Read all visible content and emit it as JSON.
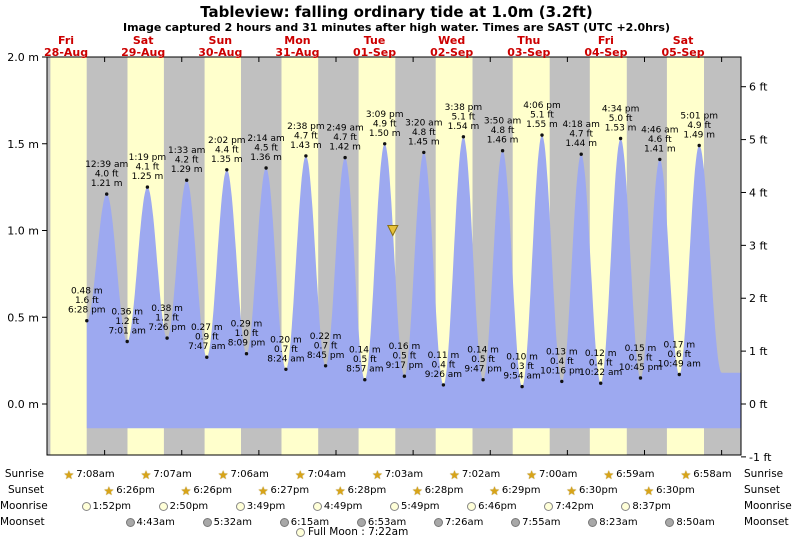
{
  "title": "Tableview: falling ordinary tide at 1.0m (3.2ft)",
  "subtitle": "Image captured 2 hours and 31 minutes after high water. Times are SAST (UTC +2.0hrs)",
  "chart_data": {
    "type": "area",
    "series_name": "tide height",
    "days": [
      {
        "weekday": "Fri",
        "date": "28-Aug"
      },
      {
        "weekday": "Sat",
        "date": "29-Aug"
      },
      {
        "weekday": "Sun",
        "date": "30-Aug"
      },
      {
        "weekday": "Mon",
        "date": "31-Aug"
      },
      {
        "weekday": "Tue",
        "date": "01-Sep"
      },
      {
        "weekday": "Wed",
        "date": "02-Sep"
      },
      {
        "weekday": "Thu",
        "date": "03-Sep"
      },
      {
        "weekday": "Fri",
        "date": "04-Sep"
      },
      {
        "weekday": "Sat",
        "date": "05-Sep"
      }
    ],
    "y_axis_left_m": [
      0.0,
      0.5,
      1.0,
      1.5,
      2.0
    ],
    "y_axis_right_ft": [
      -1,
      0,
      1,
      2,
      3,
      4,
      5,
      6
    ],
    "ylim_m": [
      -0.294,
      2.0
    ],
    "tide_events": [
      {
        "day": 0,
        "type": "low",
        "time": "6:28 pm",
        "m": "0.48",
        "ft": "1.6"
      },
      {
        "day": 1,
        "type": "high",
        "time": "12:39 am",
        "m": "1.21",
        "ft": "4.0"
      },
      {
        "day": 1,
        "type": "low",
        "time": "7:01 am",
        "m": "0.36",
        "ft": "1.2"
      },
      {
        "day": 1,
        "type": "high",
        "time": "1:19 pm",
        "m": "1.25",
        "ft": "4.1"
      },
      {
        "day": 1,
        "type": "low",
        "time": "7:26 pm",
        "m": "0.38",
        "ft": "1.2"
      },
      {
        "day": 2,
        "type": "high",
        "time": "1:33 am",
        "m": "1.29",
        "ft": "4.2"
      },
      {
        "day": 2,
        "type": "low",
        "time": "7:47 am",
        "m": "0.27",
        "ft": "0.9"
      },
      {
        "day": 2,
        "type": "high",
        "time": "2:02 pm",
        "m": "1.35",
        "ft": "4.4"
      },
      {
        "day": 2,
        "type": "low",
        "time": "8:09 pm",
        "m": "0.29",
        "ft": "1.0"
      },
      {
        "day": 3,
        "type": "high",
        "time": "2:14 am",
        "m": "1.36",
        "ft": "4.5"
      },
      {
        "day": 3,
        "type": "low",
        "time": "8:24 am",
        "m": "0.20",
        "ft": "0.7"
      },
      {
        "day": 3,
        "type": "high",
        "time": "2:38 pm",
        "m": "1.43",
        "ft": "4.7"
      },
      {
        "day": 3,
        "type": "low",
        "time": "8:45 pm",
        "m": "0.22",
        "ft": "0.7"
      },
      {
        "day": 4,
        "type": "high",
        "time": "2:49 am",
        "m": "1.42",
        "ft": "4.7"
      },
      {
        "day": 4,
        "type": "low",
        "time": "8:57 am",
        "m": "0.14",
        "ft": "0.5"
      },
      {
        "day": 4,
        "type": "high",
        "time": "3:09 pm",
        "m": "1.50",
        "ft": "4.9"
      },
      {
        "day": 4,
        "type": "low",
        "time": "9:17 pm",
        "m": "0.16",
        "ft": "0.5"
      },
      {
        "day": 5,
        "type": "high",
        "time": "3:20 am",
        "m": "1.45",
        "ft": "4.8"
      },
      {
        "day": 5,
        "type": "low",
        "time": "9:26 am",
        "m": "0.11",
        "ft": "0.4"
      },
      {
        "day": 5,
        "type": "high",
        "time": "3:38 pm",
        "m": "1.54",
        "ft": "5.1"
      },
      {
        "day": 5,
        "type": "low",
        "time": "9:47 pm",
        "m": "0.14",
        "ft": "0.5"
      },
      {
        "day": 6,
        "type": "high",
        "time": "3:50 am",
        "m": "1.46",
        "ft": "4.8"
      },
      {
        "day": 6,
        "type": "low",
        "time": "9:54 am",
        "m": "0.10",
        "ft": "0.3"
      },
      {
        "day": 6,
        "type": "high",
        "time": "4:06 pm",
        "m": "1.55",
        "ft": "5.1"
      },
      {
        "day": 6,
        "type": "low",
        "time": "10:16 pm",
        "m": "0.13",
        "ft": "0.4"
      },
      {
        "day": 7,
        "type": "high",
        "time": "4:18 am",
        "m": "1.44",
        "ft": "4.7"
      },
      {
        "day": 7,
        "type": "low",
        "time": "10:22 am",
        "m": "0.12",
        "ft": "0.4"
      },
      {
        "day": 7,
        "type": "high",
        "time": "4:34 pm",
        "m": "1.53",
        "ft": "5.0"
      },
      {
        "day": 7,
        "type": "low",
        "time": "10:45 pm",
        "m": "0.15",
        "ft": "0.5"
      },
      {
        "day": 8,
        "type": "high",
        "time": "4:46 am",
        "m": "1.41",
        "ft": "4.6"
      },
      {
        "day": 8,
        "type": "low",
        "time": "10:49 am",
        "m": "0.17",
        "ft": "0.6"
      },
      {
        "day": 8,
        "type": "high",
        "time": "5:01 pm",
        "m": "1.49",
        "ft": "4.9"
      }
    ],
    "current_marker": {
      "day": 4,
      "time": "5:40 pm",
      "height_m": 1.0
    },
    "colors": {
      "day_band": "#ffffcc",
      "night_band": "#c0c0c0",
      "tide_fill": "#9da9f0",
      "day_label": "#cc0000",
      "marker": "#e8c23a",
      "marker_edge": "#8a7010"
    }
  },
  "astro": {
    "sunrise": {
      "label": "Sunrise",
      "times": [
        "7:08am",
        "7:07am",
        "7:06am",
        "7:04am",
        "7:03am",
        "7:02am",
        "7:00am",
        "6:59am",
        "6:58am"
      ]
    },
    "sunset": {
      "label": "Sunset",
      "times": [
        "6:26pm",
        "6:26pm",
        "6:27pm",
        "6:28pm",
        "6:28pm",
        "6:29pm",
        "6:30pm",
        "6:30pm"
      ]
    },
    "moonrise": {
      "label": "Moonrise",
      "times": [
        "1:52pm",
        "2:50pm",
        "3:49pm",
        "4:49pm",
        "5:49pm",
        "6:46pm",
        "7:42pm",
        "8:37pm"
      ]
    },
    "moonset": {
      "label": "Moonset",
      "times": [
        "4:43am",
        "5:32am",
        "6:15am",
        "6:53am",
        "7:26am",
        "7:55am",
        "8:23am",
        "8:50am"
      ]
    },
    "full_moon": "Full Moon : 7:22am"
  }
}
